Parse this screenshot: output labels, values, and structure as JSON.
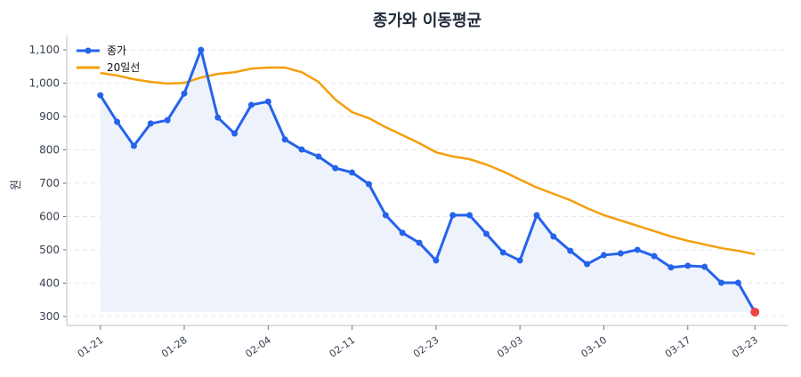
{
  "chart_data": {
    "type": "line",
    "title": "종가와 이동평균",
    "xlabel": "",
    "ylabel": "원",
    "ylim": [
      273,
      1143
    ],
    "yticks": [
      300,
      400,
      500,
      600,
      700,
      800,
      900,
      1000,
      1100
    ],
    "ytick_labels": [
      "300",
      "400",
      "500",
      "600",
      "700",
      "800",
      "900",
      "1,000",
      "1,100"
    ],
    "xtick_labels": [
      "01-21",
      "01-28",
      "02-04",
      "02-11",
      "02-23",
      "03-03",
      "03-10",
      "03-17",
      "03-23"
    ],
    "grid": "horizontal dashed",
    "legend": "top-left",
    "x": [
      "01-21",
      "01-22",
      "01-23",
      "01-24",
      "01-27",
      "01-28",
      "01-29",
      "01-30",
      "01-31",
      "02-03",
      "02-04",
      "02-05",
      "02-06",
      "02-07",
      "02-10",
      "02-11",
      "02-12",
      "02-13",
      "02-14",
      "02-20",
      "02-23",
      "02-24",
      "02-25",
      "02-26",
      "02-27",
      "03-03",
      "03-04",
      "03-05",
      "03-06",
      "03-07",
      "03-10",
      "03-11",
      "03-12",
      "03-13",
      "03-14",
      "03-17",
      "03-18",
      "03-19",
      "03-20",
      "03-23"
    ],
    "series": [
      {
        "name": "종가",
        "color": "#2563eb",
        "markers": true,
        "fill": "#eef2fb",
        "values": [
          964,
          884,
          812,
          879,
          889,
          969,
          1100,
          897,
          849,
          935,
          945,
          831,
          801,
          780,
          745,
          732,
          697,
          604,
          551,
          521,
          468,
          604,
          604,
          548,
          492,
          468,
          604,
          540,
          497,
          457,
          484,
          489,
          500,
          481,
          447,
          452,
          449,
          401,
          401,
          313
        ]
      },
      {
        "name": "20일선",
        "color": "#f59e0b",
        "markers": false,
        "values": [
          1031,
          1023,
          1012,
          1004,
          999,
          1001,
          1017,
          1028,
          1033,
          1044,
          1047,
          1047,
          1033,
          1004,
          951,
          913,
          895,
          868,
          844,
          820,
          793,
          780,
          772,
          756,
          735,
          711,
          687,
          668,
          649,
          625,
          604,
          588,
          572,
          556,
          540,
          527,
          516,
          505,
          497,
          487
        ]
      }
    ],
    "last_point_color": "#ef4444"
  }
}
